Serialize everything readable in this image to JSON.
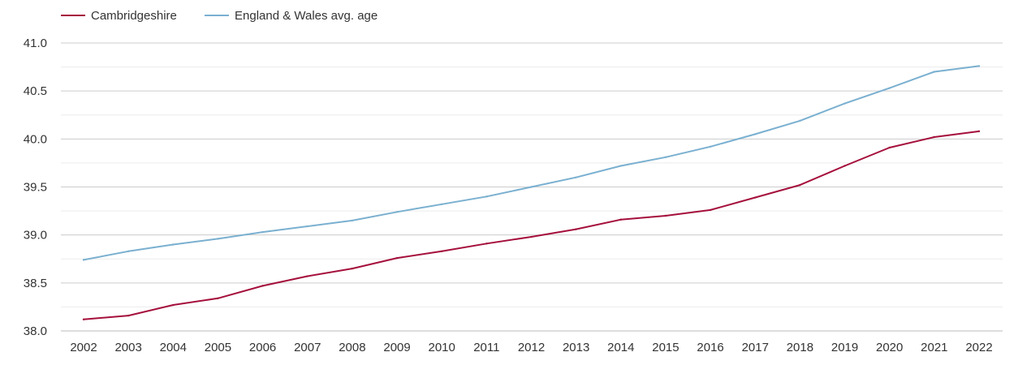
{
  "chart_data": {
    "type": "line",
    "title": "",
    "xlabel": "",
    "ylabel": "",
    "categories": [
      "2002",
      "2003",
      "2004",
      "2005",
      "2006",
      "2007",
      "2008",
      "2009",
      "2010",
      "2011",
      "2012",
      "2013",
      "2014",
      "2015",
      "2016",
      "2017",
      "2018",
      "2019",
      "2020",
      "2021",
      "2022"
    ],
    "ylim": [
      38.0,
      41.0
    ],
    "yticks": [
      "38.0",
      "38.5",
      "39.0",
      "39.5",
      "40.0",
      "40.5",
      "41.0"
    ],
    "grid": true,
    "legend_position": "top-left",
    "series": [
      {
        "name": "Cambridgeshire",
        "color": "#a50f3c",
        "values": [
          38.12,
          38.16,
          38.27,
          38.34,
          38.47,
          38.57,
          38.65,
          38.76,
          38.83,
          38.91,
          38.98,
          39.06,
          39.16,
          39.2,
          39.26,
          39.39,
          39.52,
          39.72,
          39.91,
          40.02,
          40.08
        ]
      },
      {
        "name": "England & Wales avg. age",
        "color": "#7ab0d0",
        "values": [
          38.74,
          38.83,
          38.9,
          38.96,
          39.03,
          39.09,
          39.15,
          39.24,
          39.32,
          39.4,
          39.5,
          39.6,
          39.72,
          39.81,
          39.92,
          40.05,
          40.19,
          40.37,
          40.53,
          40.7,
          40.76
        ]
      }
    ]
  }
}
